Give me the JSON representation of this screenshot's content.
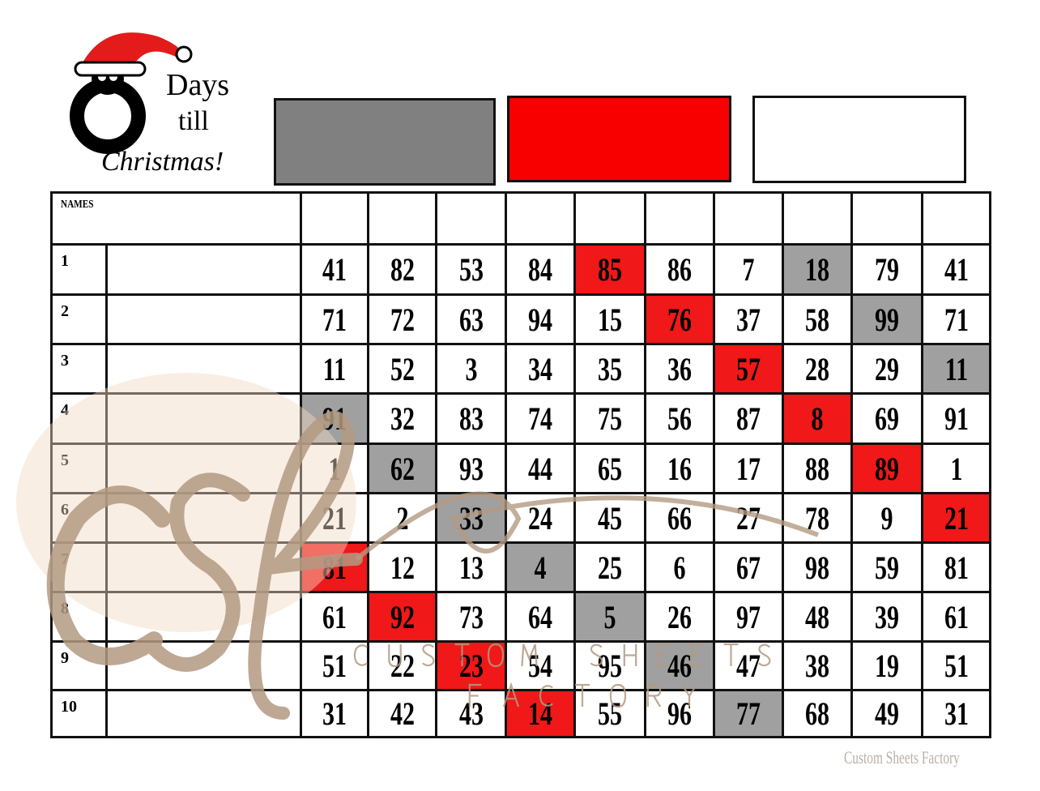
{
  "logo": {
    "text": "O Days till Christmas!",
    "line1": "Days",
    "line2": "till",
    "line3": "Christmas!"
  },
  "color_boxes": [
    {
      "color": "#808080"
    },
    {
      "color": "#f80000"
    },
    {
      "color": "#ffffff"
    }
  ],
  "grid": {
    "names_label": "NAMES",
    "rows": [
      {
        "label": "1",
        "numbers": [
          41,
          82,
          53,
          84,
          85,
          86,
          7,
          18,
          79,
          41
        ],
        "red": [
          5
        ],
        "gray": [
          8
        ]
      },
      {
        "label": "2",
        "numbers": [
          71,
          72,
          63,
          94,
          15,
          76,
          37,
          58,
          99,
          71
        ],
        "red": [
          6
        ],
        "gray": [
          9
        ]
      },
      {
        "label": "3",
        "numbers": [
          11,
          52,
          3,
          34,
          35,
          36,
          57,
          28,
          29,
          11
        ],
        "red": [
          7
        ],
        "gray": [
          10
        ]
      },
      {
        "label": "4",
        "numbers": [
          91,
          32,
          83,
          74,
          75,
          56,
          87,
          8,
          69,
          91
        ],
        "red": [
          8
        ],
        "gray": [
          1
        ]
      },
      {
        "label": "5",
        "numbers": [
          1,
          62,
          93,
          44,
          65,
          16,
          17,
          88,
          89,
          1
        ],
        "red": [
          9
        ],
        "gray": [
          2
        ]
      },
      {
        "label": "6",
        "numbers": [
          21,
          2,
          33,
          24,
          45,
          66,
          27,
          78,
          9,
          21
        ],
        "red": [
          10
        ],
        "gray": [
          3
        ]
      },
      {
        "label": "7",
        "numbers": [
          81,
          12,
          13,
          4,
          25,
          6,
          67,
          98,
          59,
          81
        ],
        "red": [
          1
        ],
        "gray": [
          4
        ]
      },
      {
        "label": "8",
        "numbers": [
          61,
          92,
          73,
          64,
          5,
          26,
          97,
          48,
          39,
          61
        ],
        "red": [
          2
        ],
        "gray": [
          5
        ]
      },
      {
        "label": "9",
        "numbers": [
          51,
          22,
          23,
          54,
          95,
          46,
          47,
          38,
          19,
          51
        ],
        "red": [
          3
        ],
        "gray": [
          6
        ]
      },
      {
        "label": "10",
        "numbers": [
          31,
          42,
          43,
          14,
          55,
          96,
          77,
          68,
          49,
          31
        ],
        "red": [
          4
        ],
        "gray": [
          7
        ]
      }
    ]
  },
  "watermark": {
    "monogram": "csf",
    "line1": "CUSTOM SHEETS",
    "line2": "FACTORY"
  },
  "footer": "Custom Sheets Factory"
}
